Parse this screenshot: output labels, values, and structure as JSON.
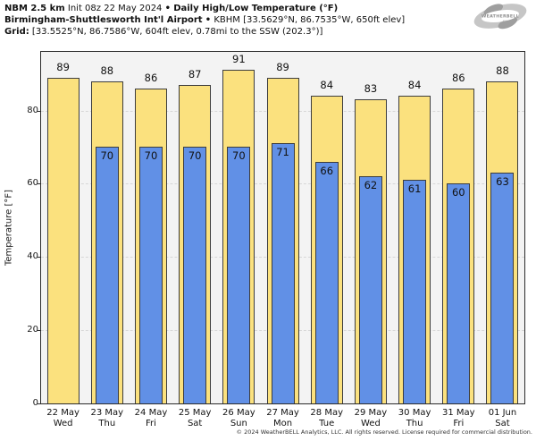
{
  "header": {
    "line1": {
      "model": "NBM 2.5 km",
      "init": "Init 08z 22 May 2024",
      "sep": "•",
      "product": "Daily High/Low Temperature (°F)"
    },
    "line2": {
      "station": "Birmingham-Shuttlesworth Int'l Airport",
      "sep": "•",
      "details": "KBHM [33.5629°N, 86.7535°W, 650ft elev]"
    },
    "line3": {
      "label": "Grid:",
      "details": "[33.5525°N, 86.7586°W, 604ft elev, 0.78mi to the SSW (202.3°)]"
    }
  },
  "logo": {
    "brand": "WEATHERBELL",
    "tagline": "ANALYTICS LLC"
  },
  "chart_data": {
    "type": "bar",
    "categories": [
      "22 May",
      "23 May",
      "24 May",
      "25 May",
      "26 May",
      "27 May",
      "28 May",
      "29 May",
      "30 May",
      "31 May",
      "01 Jun"
    ],
    "weekdays": [
      "Wed",
      "Thu",
      "Fri",
      "Sat",
      "Sun",
      "Mon",
      "Tue",
      "Wed",
      "Thu",
      "Fri",
      "Sat"
    ],
    "series": [
      {
        "name": "Daily High",
        "color": "#FBE17E",
        "values": [
          89,
          88,
          86,
          87,
          91,
          89,
          84,
          83,
          84,
          86,
          88
        ]
      },
      {
        "name": "Daily Low",
        "color": "#6190E6",
        "values": [
          null,
          70,
          70,
          70,
          70,
          71,
          66,
          62,
          61,
          60,
          63
        ]
      }
    ],
    "title": "NBM 2.5 km Daily High/Low Temperature (°F) — Birmingham-Shuttlesworth Int'l Airport",
    "xlabel": "",
    "ylabel": "Temperature [°F]",
    "yticks": [
      0,
      20,
      40,
      60,
      80
    ],
    "ylim": [
      0,
      96
    ],
    "grid": "horizontal dashed at yticks",
    "legend_position": "none",
    "plot_background": "#F3F3F3",
    "high_bar_color": "#FBE17E",
    "low_bar_color": "#6190E6",
    "bar_border_color": "#3d3d3d"
  },
  "footer": {
    "copyright": "© 2024 WeatherBELL Analytics, LLC. All rights reserved. License required for commercial distribution."
  }
}
